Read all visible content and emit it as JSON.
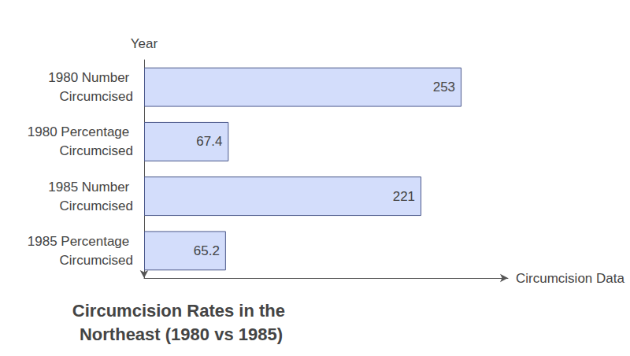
{
  "chart_data": {
    "type": "bar",
    "title": "Circumcision Rates in the Northeast (1980 vs 1985)",
    "x_label": "Circumcision Data",
    "y_label": "Year",
    "categories": [
      "1980 Number Circumcised",
      "1980 Percentage Circumcised",
      "1985 Number Circumcised",
      "1985 Percentage Circumcised"
    ],
    "values": [
      253,
      67.4,
      221,
      65.2
    ],
    "color": "#d3ddfb",
    "orientation": "horizontal",
    "data_labels": true,
    "xlim": [
      0,
      290
    ],
    "xticks": [],
    "tick_labels": "y",
    "grid": false
  }
}
